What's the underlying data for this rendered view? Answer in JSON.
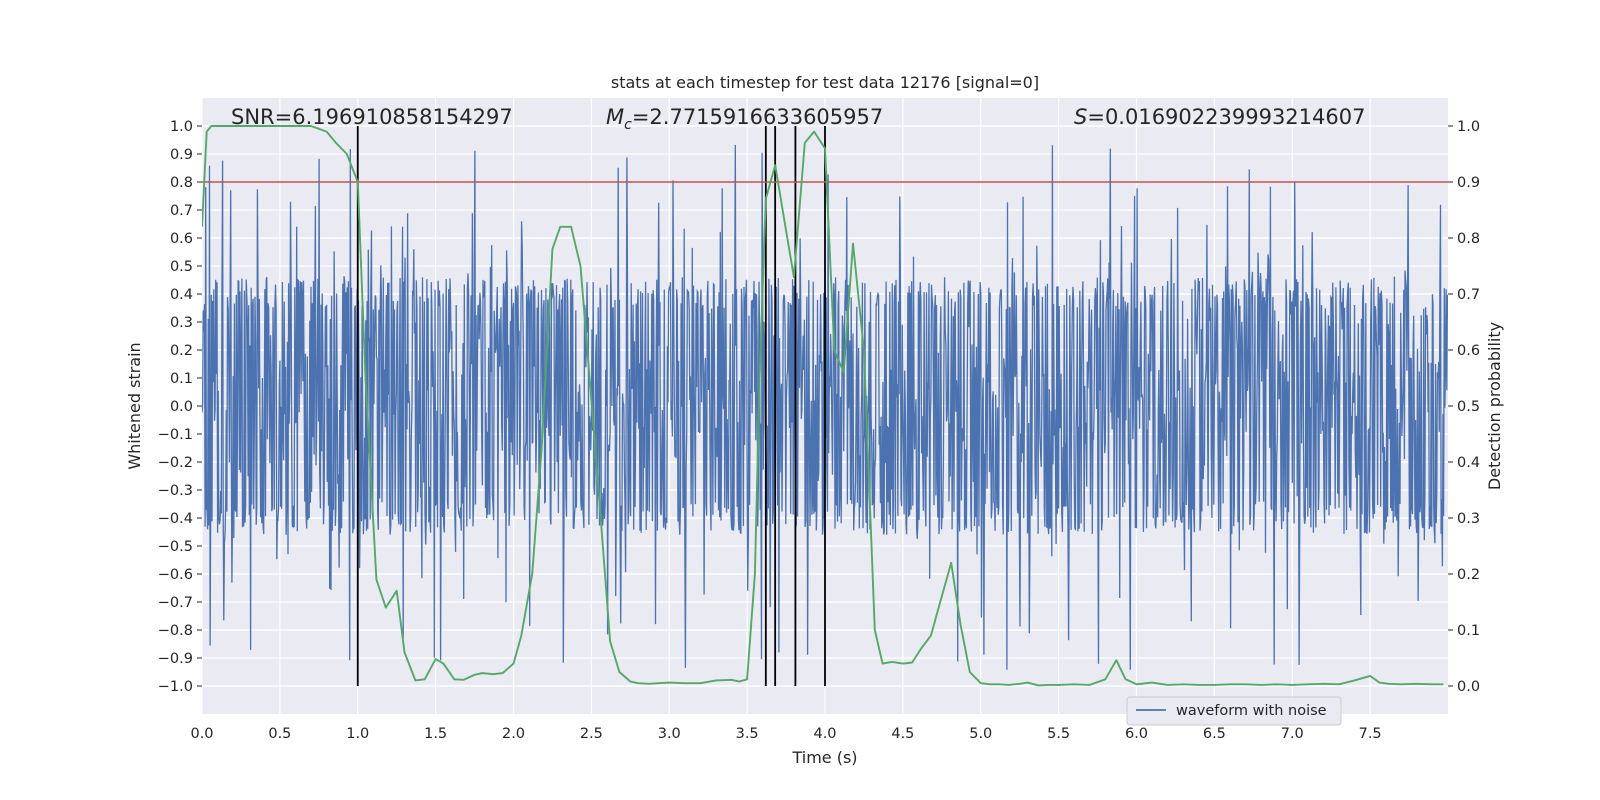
{
  "chart_data": {
    "type": "line",
    "title": "stats at each timestep for test data 12176 [signal=0]",
    "xlabel": "Time (s)",
    "ylabel": "Whitened strain",
    "y2label": "Detection probability",
    "xlim": [
      0,
      8
    ],
    "ylim": [
      -1.1,
      1.1
    ],
    "y2lim": [
      -0.05,
      1.05
    ],
    "x_ticks": [
      0.0,
      0.5,
      1.0,
      1.5,
      2.0,
      2.5,
      3.0,
      3.5,
      4.0,
      4.5,
      5.0,
      5.5,
      6.0,
      6.5,
      7.0,
      7.5
    ],
    "x_tick_labels": [
      "0.0",
      "0.5",
      "1.0",
      "1.5",
      "2.0",
      "2.5",
      "3.0",
      "3.5",
      "4.0",
      "4.5",
      "5.0",
      "5.5",
      "6.0",
      "6.5",
      "7.0",
      "7.5"
    ],
    "y_ticks": [
      -1.0,
      -0.9,
      -0.8,
      -0.7,
      -0.6,
      -0.5,
      -0.4,
      -0.3,
      -0.2,
      -0.1,
      0.0,
      0.1,
      0.2,
      0.3,
      0.4,
      0.5,
      0.6,
      0.7,
      0.8,
      0.9,
      1.0
    ],
    "y_tick_labels": [
      "−1.0",
      "−0.9",
      "−0.8",
      "−0.7",
      "−0.6",
      "−0.5",
      "−0.4",
      "−0.3",
      "−0.2",
      "−0.1",
      "0.0",
      "0.1",
      "0.2",
      "0.3",
      "0.4",
      "0.5",
      "0.6",
      "0.7",
      "0.8",
      "0.9",
      "1.0"
    ],
    "y2_ticks": [
      0.0,
      0.1,
      0.2,
      0.3,
      0.4,
      0.5,
      0.6,
      0.7,
      0.8,
      0.9,
      1.0
    ],
    "y2_tick_labels": [
      "0.0",
      "0.1",
      "0.2",
      "0.3",
      "0.4",
      "0.5",
      "0.6",
      "0.7",
      "0.8",
      "0.9",
      "1.0"
    ],
    "grid": true,
    "annotations": {
      "snr": "SNR=6.196910858154297",
      "mc_symbol": "M",
      "mc_sub": "c",
      "mc_value": "=2.7715916633605957",
      "s_symbol": "S",
      "s_value": "=0.016902239993214607"
    },
    "threshold": {
      "y2": 0.9,
      "color": "#c44e52"
    },
    "event_lines": {
      "x": [
        1.0,
        3.62,
        3.68,
        3.81,
        4.0
      ],
      "y_range": [
        -1.0,
        1.0
      ],
      "color": "#000000"
    },
    "legend": {
      "entries": [
        "waveform with noise"
      ],
      "placement": "lower-right"
    },
    "series": [
      {
        "name": "waveform with noise",
        "axis": "left",
        "color": "#4c72b0",
        "style": "dense noise",
        "band_amplitude": 0.4,
        "samples_per_second": 250,
        "random_seed": 12176
      },
      {
        "name": "detection probability",
        "axis": "right",
        "color": "#55a868",
        "x": [
          0.0,
          0.03,
          0.06,
          0.12,
          0.2,
          0.3,
          0.4,
          0.5,
          0.6,
          0.7,
          0.8,
          0.86,
          0.93,
          1.0,
          1.05,
          1.12,
          1.18,
          1.25,
          1.3,
          1.37,
          1.43,
          1.5,
          1.55,
          1.62,
          1.68,
          1.75,
          1.8,
          1.87,
          1.93,
          2.0,
          2.05,
          2.12,
          2.18,
          2.25,
          2.3,
          2.37,
          2.43,
          2.5,
          2.56,
          2.62,
          2.68,
          2.75,
          2.8,
          2.87,
          2.93,
          3.0,
          3.1,
          3.2,
          3.3,
          3.4,
          3.45,
          3.5,
          3.55,
          3.58,
          3.62,
          3.68,
          3.74,
          3.8,
          3.87,
          3.93,
          4.0,
          4.06,
          4.12,
          4.18,
          4.25,
          4.32,
          4.37,
          4.43,
          4.5,
          4.56,
          4.62,
          4.68,
          4.75,
          4.81,
          4.87,
          4.93,
          5.0,
          5.06,
          5.12,
          5.18,
          5.25,
          5.3,
          5.37,
          5.43,
          5.5,
          5.6,
          5.7,
          5.8,
          5.87,
          5.93,
          6.0,
          6.1,
          6.2,
          6.3,
          6.4,
          6.5,
          6.6,
          6.7,
          6.8,
          6.9,
          7.0,
          7.1,
          7.2,
          7.3,
          7.4,
          7.5,
          7.56,
          7.62,
          7.7,
          7.8,
          7.9,
          7.97
        ],
        "y": [
          0.82,
          0.99,
          1.0,
          1.0,
          1.0,
          1.0,
          1.0,
          1.0,
          1.0,
          1.0,
          0.99,
          0.97,
          0.95,
          0.9,
          0.55,
          0.19,
          0.14,
          0.17,
          0.06,
          0.01,
          0.012,
          0.048,
          0.04,
          0.012,
          0.011,
          0.02,
          0.023,
          0.021,
          0.023,
          0.04,
          0.09,
          0.2,
          0.42,
          0.78,
          0.82,
          0.82,
          0.75,
          0.51,
          0.3,
          0.08,
          0.025,
          0.008,
          0.005,
          0.004,
          0.005,
          0.006,
          0.005,
          0.005,
          0.01,
          0.011,
          0.008,
          0.012,
          0.2,
          0.55,
          0.87,
          0.93,
          0.83,
          0.73,
          0.97,
          0.99,
          0.96,
          0.6,
          0.56,
          0.79,
          0.6,
          0.1,
          0.04,
          0.043,
          0.04,
          0.042,
          0.068,
          0.09,
          0.16,
          0.22,
          0.11,
          0.025,
          0.005,
          0.003,
          0.003,
          0.002,
          0.004,
          0.006,
          0.001,
          0.002,
          0.002,
          0.003,
          0.002,
          0.012,
          0.046,
          0.012,
          0.003,
          0.006,
          0.002,
          0.003,
          0.002,
          0.002,
          0.003,
          0.003,
          0.002,
          0.003,
          0.002,
          0.003,
          0.004,
          0.003,
          0.01,
          0.018,
          0.006,
          0.004,
          0.003,
          0.004,
          0.003,
          0.003
        ]
      }
    ]
  }
}
